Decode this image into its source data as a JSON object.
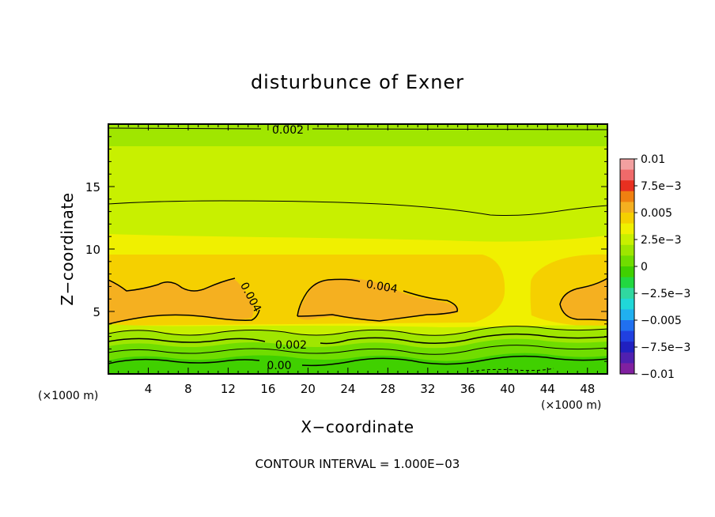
{
  "chart_data": {
    "type": "heatmap",
    "title": "disturbunce of Exner",
    "xlabel": "X−coordinate",
    "ylabel": "Z−coordinate",
    "x_unit_left": "(×1000 m)",
    "x_unit_right": "(×1000 m)",
    "note": "CONTOUR INTERVAL = 1.000E−03",
    "xlim": [
      0,
      50
    ],
    "ylim": [
      0,
      20
    ],
    "x_ticks": [
      4,
      8,
      12,
      16,
      20,
      24,
      28,
      32,
      36,
      40,
      44,
      48
    ],
    "x_tick_labels": [
      "4",
      "8",
      "12",
      "16",
      "20",
      "24",
      "28",
      "32",
      "36",
      "40",
      "44",
      "48"
    ],
    "y_ticks": [
      5,
      10,
      15
    ],
    "y_tick_labels": [
      "5",
      "10",
      "15"
    ],
    "colorbar": {
      "range": [
        -0.01,
        0.01
      ],
      "tick_values": [
        0.01,
        0.0075,
        0.005,
        0.0025,
        0,
        -0.0025,
        -0.005,
        -0.0075,
        -0.01
      ],
      "tick_labels": [
        "0.01",
        "7.5e−3",
        "0.005",
        "2.5e−3",
        "0",
        "−2.5e−3",
        "−0.005",
        "−7.5e−3",
        "−0.01"
      ],
      "colors": [
        "#f2a0a0",
        "#f06a6a",
        "#e83020",
        "#f08010",
        "#f5b020",
        "#f5d000",
        "#f0f000",
        "#c8f000",
        "#9ee600",
        "#70dd00",
        "#40d000",
        "#22d840",
        "#30d8a0",
        "#20d8d8",
        "#20b0f0",
        "#2070f0",
        "#2040e0",
        "#2020c0",
        "#5020b0",
        "#8020a0"
      ]
    },
    "contour_labels": [
      "0.002",
      "0.004",
      "0.004",
      "0.002",
      "0.00"
    ]
  },
  "colors": {
    "background": "#ffffff",
    "yellow": "#f0f000",
    "yellow_green": "#c8f000",
    "green_yellow": "#a0e600",
    "green": "#70dd00",
    "bright_green": "#40d000",
    "orange_yellow": "#f5d000",
    "orange": "#f5b020"
  }
}
